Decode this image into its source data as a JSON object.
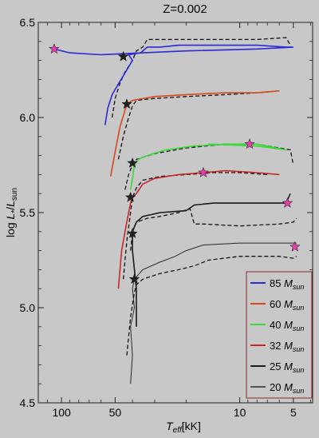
{
  "chart_data": {
    "type": "line",
    "title": "Z=0.002",
    "xlabel_main": "T",
    "xlabel_sub": "eff",
    "xlabel_rest": "[kK]",
    "ylabel_parts": [
      "log ",
      "L",
      "*",
      "/",
      "L",
      "sun"
    ],
    "x_scale": "log",
    "x_reversed": true,
    "xlim": [
      135,
      3.9
    ],
    "ylim": [
      4.5,
      6.5
    ],
    "x_ticks": [
      {
        "value": 100,
        "label": "100"
      },
      {
        "value": 50,
        "label": "50"
      },
      {
        "value": 10,
        "label": "10"
      },
      {
        "value": 5,
        "label": "5"
      }
    ],
    "y_ticks": [
      {
        "value": 4.5,
        "label": "4.5"
      },
      {
        "value": 5.0,
        "label": "5.0"
      },
      {
        "value": 5.5,
        "label": "5.5"
      },
      {
        "value": 6.0,
        "label": "6.0"
      },
      {
        "value": 6.5,
        "label": "6.5"
      }
    ],
    "background_color": "#c8c8c8",
    "legend_position": "lower-right",
    "series": [
      {
        "name": "85",
        "unit": "M",
        "unit_sub": "sun",
        "color": "#2a2ad6",
        "width": 1.6,
        "solid": [
          [
            57,
            5.96
          ],
          [
            55,
            6.05
          ],
          [
            52,
            6.12
          ],
          [
            47,
            6.19
          ],
          [
            43,
            6.25
          ],
          [
            40,
            6.3
          ],
          [
            42,
            6.33
          ],
          [
            36,
            6.34
          ],
          [
            33,
            6.37
          ],
          [
            28,
            6.37
          ],
          [
            22,
            6.38
          ],
          [
            16,
            6.38
          ],
          [
            12,
            6.38
          ],
          [
            8,
            6.38
          ],
          [
            5.5,
            6.37
          ],
          [
            5,
            6.37
          ],
          [
            8,
            6.36
          ],
          [
            20,
            6.35
          ],
          [
            35,
            6.34
          ],
          [
            60,
            6.33
          ],
          [
            90,
            6.34
          ],
          [
            110,
            6.36
          ]
        ],
        "dashed": [
          [
            52,
            6.0
          ],
          [
            50,
            6.1
          ],
          [
            47,
            6.18
          ],
          [
            44,
            6.24
          ],
          [
            40,
            6.3
          ],
          [
            38,
            6.35
          ],
          [
            35,
            6.37
          ],
          [
            33,
            6.41
          ],
          [
            25,
            6.41
          ],
          [
            15,
            6.41
          ],
          [
            8,
            6.41
          ],
          [
            5.5,
            6.42
          ],
          [
            5.2,
            6.38
          ]
        ],
        "stars": [
          {
            "x": 110,
            "y": 6.36,
            "color": "#e040a8"
          },
          {
            "x": 45,
            "y": 6.32,
            "color": "#222222"
          }
        ]
      },
      {
        "name": "60",
        "unit": "M",
        "unit_sub": "sun",
        "color": "#d64a1a",
        "width": 1.6,
        "solid": [
          [
            53,
            5.69
          ],
          [
            50,
            5.82
          ],
          [
            47,
            5.95
          ],
          [
            44,
            6.04
          ],
          [
            43,
            6.07
          ],
          [
            40,
            6.09
          ],
          [
            30,
            6.11
          ],
          [
            20,
            6.12
          ],
          [
            12,
            6.13
          ],
          [
            8,
            6.13
          ],
          [
            6,
            6.14
          ]
        ],
        "dashed": [
          [
            48,
            5.78
          ],
          [
            45,
            5.9
          ],
          [
            42,
            6.0
          ],
          [
            40,
            6.06
          ],
          [
            38,
            6.09
          ],
          [
            30,
            6.1
          ],
          [
            20,
            6.11
          ],
          [
            12,
            6.12
          ],
          [
            8,
            6.13
          ],
          [
            6,
            6.14
          ]
        ],
        "stars": [
          {
            "x": 43,
            "y": 6.07,
            "color": "#222222"
          }
        ]
      },
      {
        "name": "40",
        "unit": "M",
        "unit_sub": "sun",
        "color": "#3ad83a",
        "width": 1.6,
        "solid": [
          [
            41,
            5.62
          ],
          [
            40,
            5.68
          ],
          [
            39,
            5.75
          ],
          [
            37,
            5.78
          ],
          [
            33,
            5.8
          ],
          [
            26,
            5.83
          ],
          [
            18,
            5.85
          ],
          [
            12,
            5.86
          ],
          [
            8,
            5.86
          ],
          [
            5.5,
            5.83
          ],
          [
            8,
            5.85
          ],
          [
            15,
            5.86
          ]
        ],
        "dashed": [
          [
            44,
            5.62
          ],
          [
            42,
            5.7
          ],
          [
            40,
            5.75
          ],
          [
            38,
            5.78
          ],
          [
            30,
            5.81
          ],
          [
            20,
            5.84
          ],
          [
            12,
            5.86
          ],
          [
            8,
            5.86
          ],
          [
            5.2,
            5.83
          ],
          [
            5.0,
            5.75
          ]
        ],
        "stars": [
          {
            "x": 40,
            "y": 5.76,
            "color": "#222222"
          },
          {
            "x": 8.8,
            "y": 5.86,
            "color": "#e040a8"
          }
        ]
      },
      {
        "name": "32",
        "unit": "M",
        "unit_sub": "sun",
        "color": "#c82828",
        "width": 1.6,
        "solid": [
          [
            48,
            5.1
          ],
          [
            46,
            5.3
          ],
          [
            43,
            5.45
          ],
          [
            41,
            5.55
          ],
          [
            40,
            5.58
          ],
          [
            38,
            5.6
          ],
          [
            35,
            5.65
          ],
          [
            30,
            5.68
          ],
          [
            22,
            5.7
          ],
          [
            16,
            5.71
          ],
          [
            12,
            5.72
          ],
          [
            8,
            5.71
          ],
          [
            6,
            5.7
          ]
        ],
        "dashed": [
          [
            45,
            5.15
          ],
          [
            43,
            5.35
          ],
          [
            41,
            5.5
          ],
          [
            40,
            5.58
          ],
          [
            38,
            5.63
          ],
          [
            35,
            5.67
          ],
          [
            28,
            5.69
          ],
          [
            20,
            5.7
          ],
          [
            14,
            5.71
          ],
          [
            10,
            5.71
          ],
          [
            7,
            5.7
          ]
        ],
        "stars": [
          {
            "x": 41,
            "y": 5.58,
            "color": "#222222"
          },
          {
            "x": 16,
            "y": 5.71,
            "color": "#e040a8"
          }
        ]
      },
      {
        "name": "25",
        "unit": "M",
        "unit_sub": "sun",
        "color": "#1a1a1a",
        "width": 1.6,
        "solid": [
          [
            38,
            4.9
          ],
          [
            38,
            5.1
          ],
          [
            40,
            5.3
          ],
          [
            40,
            5.4
          ],
          [
            38,
            5.45
          ],
          [
            35,
            5.48
          ],
          [
            28,
            5.5
          ],
          [
            20,
            5.51
          ],
          [
            18,
            5.54
          ],
          [
            14,
            5.55
          ],
          [
            10,
            5.55
          ],
          [
            7,
            5.55
          ],
          [
            5.5,
            5.55
          ],
          [
            5.2,
            5.6
          ]
        ],
        "dashed": [
          [
            41,
            5.3
          ],
          [
            40,
            5.4
          ],
          [
            38,
            5.45
          ],
          [
            33,
            5.47
          ],
          [
            28,
            5.48
          ],
          [
            22,
            5.5
          ],
          [
            19,
            5.52
          ],
          [
            18,
            5.44
          ],
          [
            16,
            5.44
          ],
          [
            10,
            5.43
          ],
          [
            6,
            5.44
          ],
          [
            5.0,
            5.45
          ],
          [
            4.8,
            5.47
          ]
        ],
        "stars": [
          {
            "x": 40,
            "y": 5.39,
            "color": "#222222"
          },
          {
            "x": 5.4,
            "y": 5.55,
            "color": "#e040a8"
          }
        ]
      },
      {
        "name": "20",
        "unit": "M",
        "unit_sub": "sun",
        "color": "#2a2a2a",
        "width": 1.0,
        "solid": [
          [
            41,
            4.6
          ],
          [
            40,
            4.75
          ],
          [
            41,
            4.9
          ],
          [
            39,
            5.0
          ],
          [
            40,
            5.1
          ],
          [
            39,
            5.15
          ],
          [
            35,
            5.2
          ],
          [
            28,
            5.24
          ],
          [
            23,
            5.27
          ],
          [
            20,
            5.3
          ],
          [
            16,
            5.33
          ],
          [
            10,
            5.34
          ],
          [
            6,
            5.34
          ],
          [
            4.8,
            5.34
          ]
        ],
        "dashed": [
          [
            43,
            4.75
          ],
          [
            41,
            4.95
          ],
          [
            39,
            5.08
          ],
          [
            38,
            5.12
          ],
          [
            35,
            5.15
          ],
          [
            28,
            5.18
          ],
          [
            22,
            5.2
          ],
          [
            18,
            5.22
          ],
          [
            15,
            5.25
          ],
          [
            10,
            5.27
          ],
          [
            6,
            5.27
          ],
          [
            5.0,
            5.26
          ],
          [
            4.8,
            5.27
          ]
        ],
        "stars": [
          {
            "x": 39,
            "y": 5.15,
            "color": "#222222"
          },
          {
            "x": 4.9,
            "y": 5.32,
            "color": "#e040a8"
          }
        ]
      }
    ]
  }
}
